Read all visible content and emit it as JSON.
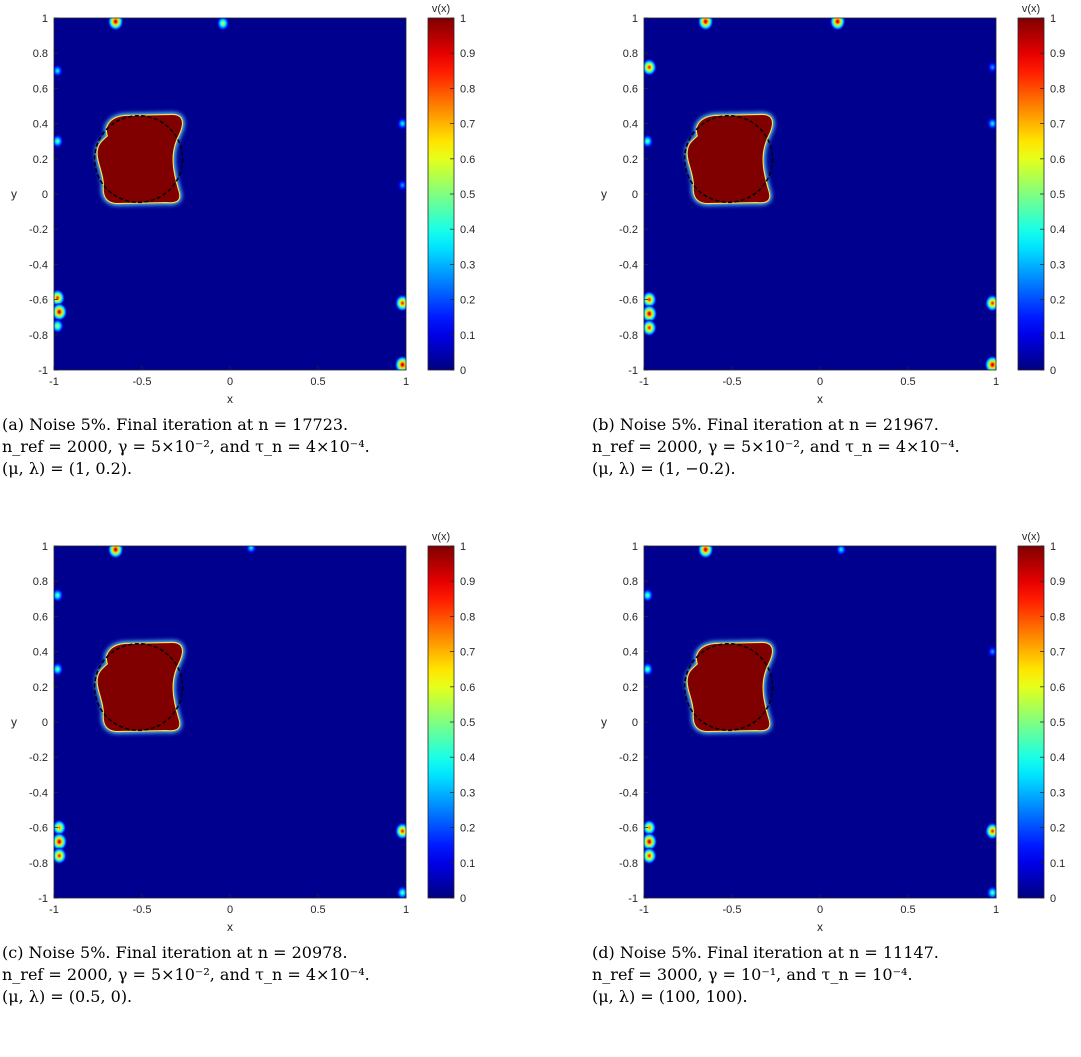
{
  "colors": {
    "background": "#00008F",
    "shape": "#800000",
    "axis": "#262626",
    "true_boundary": "#000000"
  },
  "chart_data": [
    {
      "type": "heatmap",
      "xlabel": "x",
      "ylabel": "y",
      "xlim": [
        -1,
        1
      ],
      "ylim": [
        -1,
        1
      ],
      "xticks": [
        "-1",
        "-0.5",
        "0",
        "0.5",
        "1"
      ],
      "yticks": [
        "1",
        "0.8",
        "0.6",
        "0.4",
        "0.2",
        "0",
        "-0.2",
        "-0.4",
        "-0.6",
        "-0.8",
        "-1"
      ],
      "colorbar": {
        "title": "v(x)",
        "range": [
          0,
          1
        ],
        "ticks": [
          "1",
          "0.9",
          "0.8",
          "0.7",
          "0.6",
          "0.5",
          "0.4",
          "0.3",
          "0.2",
          "0.1",
          "0"
        ]
      },
      "artifacts": [
        {
          "x": -0.65,
          "y": 0.98,
          "v": 1.0
        },
        {
          "x": -0.04,
          "y": 0.97,
          "v": 0.6
        },
        {
          "x": -0.98,
          "y": 0.7,
          "v": 0.4
        },
        {
          "x": -0.98,
          "y": 0.3,
          "v": 0.5
        },
        {
          "x": -0.98,
          "y": -0.59,
          "v": 0.9
        },
        {
          "x": -0.97,
          "y": -0.67,
          "v": 1.0
        },
        {
          "x": -0.98,
          "y": -0.75,
          "v": 0.6
        },
        {
          "x": 0.98,
          "y": -0.62,
          "v": 0.9
        },
        {
          "x": 0.98,
          "y": -0.97,
          "v": 1.0
        },
        {
          "x": 0.98,
          "y": 0.4,
          "v": 0.4
        },
        {
          "x": 0.98,
          "y": 0.05,
          "v": 0.3
        }
      ],
      "caption": {
        "line1": "(a) Noise 5%. Final iteration at n = 17723.",
        "line2": "n_ref = 2000, γ = 5×10⁻², and τ_n = 4×10⁻⁴.",
        "line3": "(μ, λ) = (1, 0.2)."
      }
    },
    {
      "type": "heatmap",
      "xlabel": "x",
      "ylabel": "y",
      "xlim": [
        -1,
        1
      ],
      "ylim": [
        -1,
        1
      ],
      "xticks": [
        "-1",
        "-0.5",
        "0",
        "0.5",
        "1"
      ],
      "yticks": [
        "1",
        "0.8",
        "0.6",
        "0.4",
        "0.2",
        "0",
        "-0.2",
        "-0.4",
        "-0.6",
        "-0.8",
        "-1"
      ],
      "colorbar": {
        "title": "v(x)",
        "range": [
          0,
          1
        ],
        "ticks": [
          "1",
          "0.9",
          "0.8",
          "0.7",
          "0.6",
          "0.5",
          "0.4",
          "0.3",
          "0.2",
          "0.1",
          "0"
        ]
      },
      "artifacts": [
        {
          "x": -0.65,
          "y": 0.98,
          "v": 1.0
        },
        {
          "x": 0.1,
          "y": 0.98,
          "v": 1.0
        },
        {
          "x": -0.97,
          "y": 0.72,
          "v": 0.9
        },
        {
          "x": -0.98,
          "y": 0.3,
          "v": 0.5
        },
        {
          "x": -0.97,
          "y": -0.6,
          "v": 0.9
        },
        {
          "x": -0.97,
          "y": -0.68,
          "v": 1.0
        },
        {
          "x": -0.97,
          "y": -0.76,
          "v": 0.9
        },
        {
          "x": 0.98,
          "y": -0.62,
          "v": 0.9
        },
        {
          "x": 0.98,
          "y": -0.97,
          "v": 1.0
        },
        {
          "x": 0.98,
          "y": 0.4,
          "v": 0.4
        },
        {
          "x": 0.98,
          "y": 0.72,
          "v": 0.3
        }
      ],
      "caption": {
        "line1": "(b) Noise 5%. Final iteration at n = 21967.",
        "line2": "n_ref = 2000, γ = 5×10⁻², and τ_n = 4×10⁻⁴.",
        "line3": "(μ, λ) = (1, −0.2)."
      }
    },
    {
      "type": "heatmap",
      "xlabel": "x",
      "ylabel": "y",
      "xlim": [
        -1,
        1
      ],
      "ylim": [
        -1,
        1
      ],
      "xticks": [
        "-1",
        "-0.5",
        "0",
        "0.5",
        "1"
      ],
      "yticks": [
        "1",
        "0.8",
        "0.6",
        "0.4",
        "0.2",
        "0",
        "-0.2",
        "-0.4",
        "-0.6",
        "-0.8",
        "-1"
      ],
      "colorbar": {
        "title": "v(x)",
        "range": [
          0,
          1
        ],
        "ticks": [
          "1",
          "0.9",
          "0.8",
          "0.7",
          "0.6",
          "0.5",
          "0.4",
          "0.3",
          "0.2",
          "0.1",
          "0"
        ]
      },
      "artifacts": [
        {
          "x": -0.65,
          "y": 0.98,
          "v": 1.0
        },
        {
          "x": 0.12,
          "y": 0.99,
          "v": 0.4
        },
        {
          "x": -0.98,
          "y": 0.72,
          "v": 0.5
        },
        {
          "x": -0.98,
          "y": 0.3,
          "v": 0.5
        },
        {
          "x": -0.97,
          "y": -0.6,
          "v": 0.8
        },
        {
          "x": -0.97,
          "y": -0.68,
          "v": 1.0
        },
        {
          "x": -0.97,
          "y": -0.76,
          "v": 0.9
        },
        {
          "x": 0.98,
          "y": -0.62,
          "v": 0.9
        },
        {
          "x": 0.98,
          "y": -0.97,
          "v": 0.5
        }
      ],
      "caption": {
        "line1": "(c) Noise 5%. Final iteration at n = 20978.",
        "line2": "n_ref = 2000, γ = 5×10⁻², and τ_n = 4×10⁻⁴.",
        "line3": "(μ, λ) = (0.5, 0)."
      }
    },
    {
      "type": "heatmap",
      "xlabel": "x",
      "ylabel": "y",
      "xlim": [
        -1,
        1
      ],
      "ylim": [
        -1,
        1
      ],
      "xticks": [
        "-1",
        "-0.5",
        "0",
        "0.5",
        "1"
      ],
      "yticks": [
        "1",
        "0.8",
        "0.6",
        "0.4",
        "0.2",
        "0",
        "-0.2",
        "-0.4",
        "-0.6",
        "-0.8",
        "-1"
      ],
      "colorbar": {
        "title": "v(x)",
        "range": [
          0,
          1
        ],
        "ticks": [
          "1",
          "0.9",
          "0.8",
          "0.7",
          "0.6",
          "0.5",
          "0.4",
          "0.3",
          "0.2",
          "0.1",
          "0"
        ]
      },
      "artifacts": [
        {
          "x": -0.65,
          "y": 0.98,
          "v": 1.0
        },
        {
          "x": 0.12,
          "y": 0.98,
          "v": 0.4
        },
        {
          "x": -0.98,
          "y": 0.72,
          "v": 0.5
        },
        {
          "x": -0.98,
          "y": 0.3,
          "v": 0.5
        },
        {
          "x": -0.97,
          "y": -0.6,
          "v": 0.8
        },
        {
          "x": -0.97,
          "y": -0.68,
          "v": 1.0
        },
        {
          "x": -0.97,
          "y": -0.76,
          "v": 0.9
        },
        {
          "x": 0.98,
          "y": -0.62,
          "v": 0.9
        },
        {
          "x": 0.98,
          "y": -0.97,
          "v": 0.5
        },
        {
          "x": 0.98,
          "y": 0.4,
          "v": 0.3
        }
      ],
      "caption": {
        "line1": "(d) Noise 5%. Final iteration at n = 11147.",
        "line2": "n_ref = 3000, γ = 10⁻¹, and τ_n = 10⁻⁴.",
        "line3": "(μ, λ) = (100, 100)."
      }
    }
  ]
}
